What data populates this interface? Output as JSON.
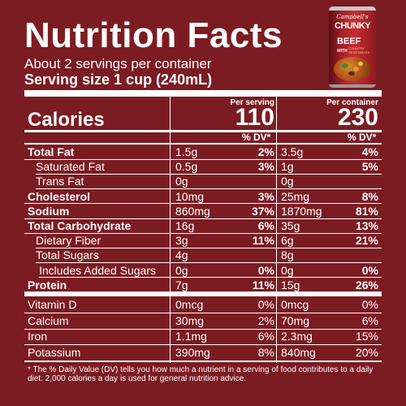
{
  "label": {
    "title": "Nutrition Facts",
    "servings_per_container": "About 2 servings per container",
    "serving_size": "Serving size  1 cup (240mL)",
    "col_per_serving_header": "Per serving",
    "col_per_container_header": "Per container",
    "calories_label": "Calories",
    "calories_per_serving": "110",
    "calories_per_container": "230",
    "dv_header": "% DV*"
  },
  "rows": [
    {
      "name": "Total Fat",
      "bold": true,
      "indent": 0,
      "s_amt": "1.5g",
      "s_dv": "2%",
      "c_amt": "3.5g",
      "c_dv": "4%"
    },
    {
      "name": "Saturated Fat",
      "bold": false,
      "indent": 1,
      "s_amt": "0.5g",
      "s_dv": "3%",
      "c_amt": "1g",
      "c_dv": "5%"
    },
    {
      "name": "Trans Fat",
      "bold": false,
      "indent": 1,
      "s_amt": "0g",
      "s_dv": "",
      "c_amt": "0g",
      "c_dv": ""
    },
    {
      "name": "Cholesterol",
      "bold": true,
      "indent": 0,
      "s_amt": "10mg",
      "s_dv": "3%",
      "c_amt": "25mg",
      "c_dv": "8%"
    },
    {
      "name": "Sodium",
      "bold": true,
      "indent": 0,
      "s_amt": "860mg",
      "s_dv": "37%",
      "c_amt": "1870mg",
      "c_dv": "81%"
    },
    {
      "name": "Total Carbohydrate",
      "bold": true,
      "indent": 0,
      "s_amt": "16g",
      "s_dv": "6%",
      "c_amt": "35g",
      "c_dv": "13%"
    },
    {
      "name": "Dietary Fiber",
      "bold": false,
      "indent": 1,
      "s_amt": "3g",
      "s_dv": "11%",
      "c_amt": "6g",
      "c_dv": "21%"
    },
    {
      "name": "Total Sugars",
      "bold": false,
      "indent": 1,
      "s_amt": "4g",
      "s_dv": "",
      "c_amt": "8g",
      "c_dv": ""
    },
    {
      "name": "Includes Added Sugars",
      "bold": false,
      "indent": 2,
      "s_amt": "0g",
      "s_dv": "0%",
      "c_amt": "0g",
      "c_dv": "0%"
    },
    {
      "name": "Protein",
      "bold": true,
      "indent": 0,
      "s_amt": "7g",
      "s_dv": "11%",
      "c_amt": "15g",
      "c_dv": "26%"
    }
  ],
  "vitamins": [
    {
      "name": "Vitamin D",
      "s_amt": "0mcg",
      "s_dv": "0%",
      "c_amt": "0mcg",
      "c_dv": "0%"
    },
    {
      "name": "Calcium",
      "s_amt": "30mg",
      "s_dv": "2%",
      "c_amt": "70mg",
      "c_dv": "6%"
    },
    {
      "name": "Iron",
      "s_amt": "1.1mg",
      "s_dv": "6%",
      "c_amt": "2.3mg",
      "c_dv": "15%"
    },
    {
      "name": "Potassium",
      "s_amt": "390mg",
      "s_dv": "8%",
      "c_amt": "840mg",
      "c_dv": "20%"
    }
  ],
  "footnote": "* The % Daily Value (DV) tells you how much a nutrient in a serving of food contributes to a daily diet. 2,000 calories a day is used for general nutrition advice.",
  "product_image": {
    "icon": "soup-can-icon",
    "brand": "Campbell's",
    "line": "CHUNKY",
    "name": "BEEF",
    "name_suffix": "WITH",
    "sub": "COUNTRY VEGETABLES"
  },
  "colors": {
    "background": "#7b1c22",
    "text": "#ffffff"
  }
}
